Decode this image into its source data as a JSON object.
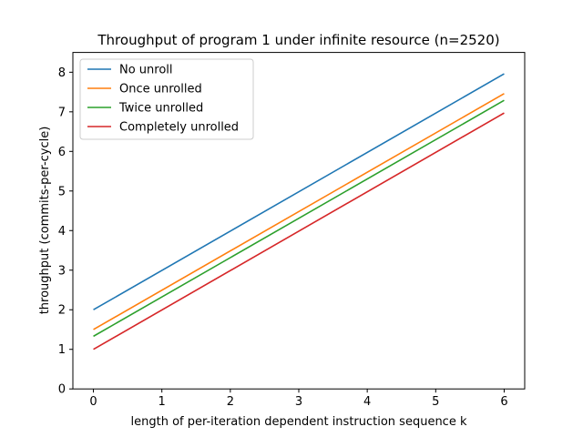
{
  "chart_data": {
    "type": "line",
    "title": "Throughput of program 1 under infinite resource (n=2520)",
    "xlabel": "length of per-iteration dependent instruction sequence k",
    "ylabel": "throughput (commits-per-cycle)",
    "xlim": [
      -0.3,
      6.3
    ],
    "ylim": [
      0,
      8.5
    ],
    "xticks": [
      0,
      1,
      2,
      3,
      4,
      5,
      6
    ],
    "yticks": [
      0,
      1,
      2,
      3,
      4,
      5,
      6,
      7,
      8
    ],
    "grid": false,
    "legend_position": "top-left",
    "x": [
      0,
      6
    ],
    "series": [
      {
        "name": "No unroll",
        "color": "#1f77b4",
        "values": [
          2.0,
          7.96
        ]
      },
      {
        "name": "Once unrolled",
        "color": "#ff7f0e",
        "values": [
          1.5,
          7.46
        ]
      },
      {
        "name": "Twice unrolled",
        "color": "#2ca02c",
        "values": [
          1.33,
          7.29
        ]
      },
      {
        "name": "Completely unrolled",
        "color": "#d62728",
        "values": [
          1.0,
          6.97
        ]
      }
    ]
  }
}
